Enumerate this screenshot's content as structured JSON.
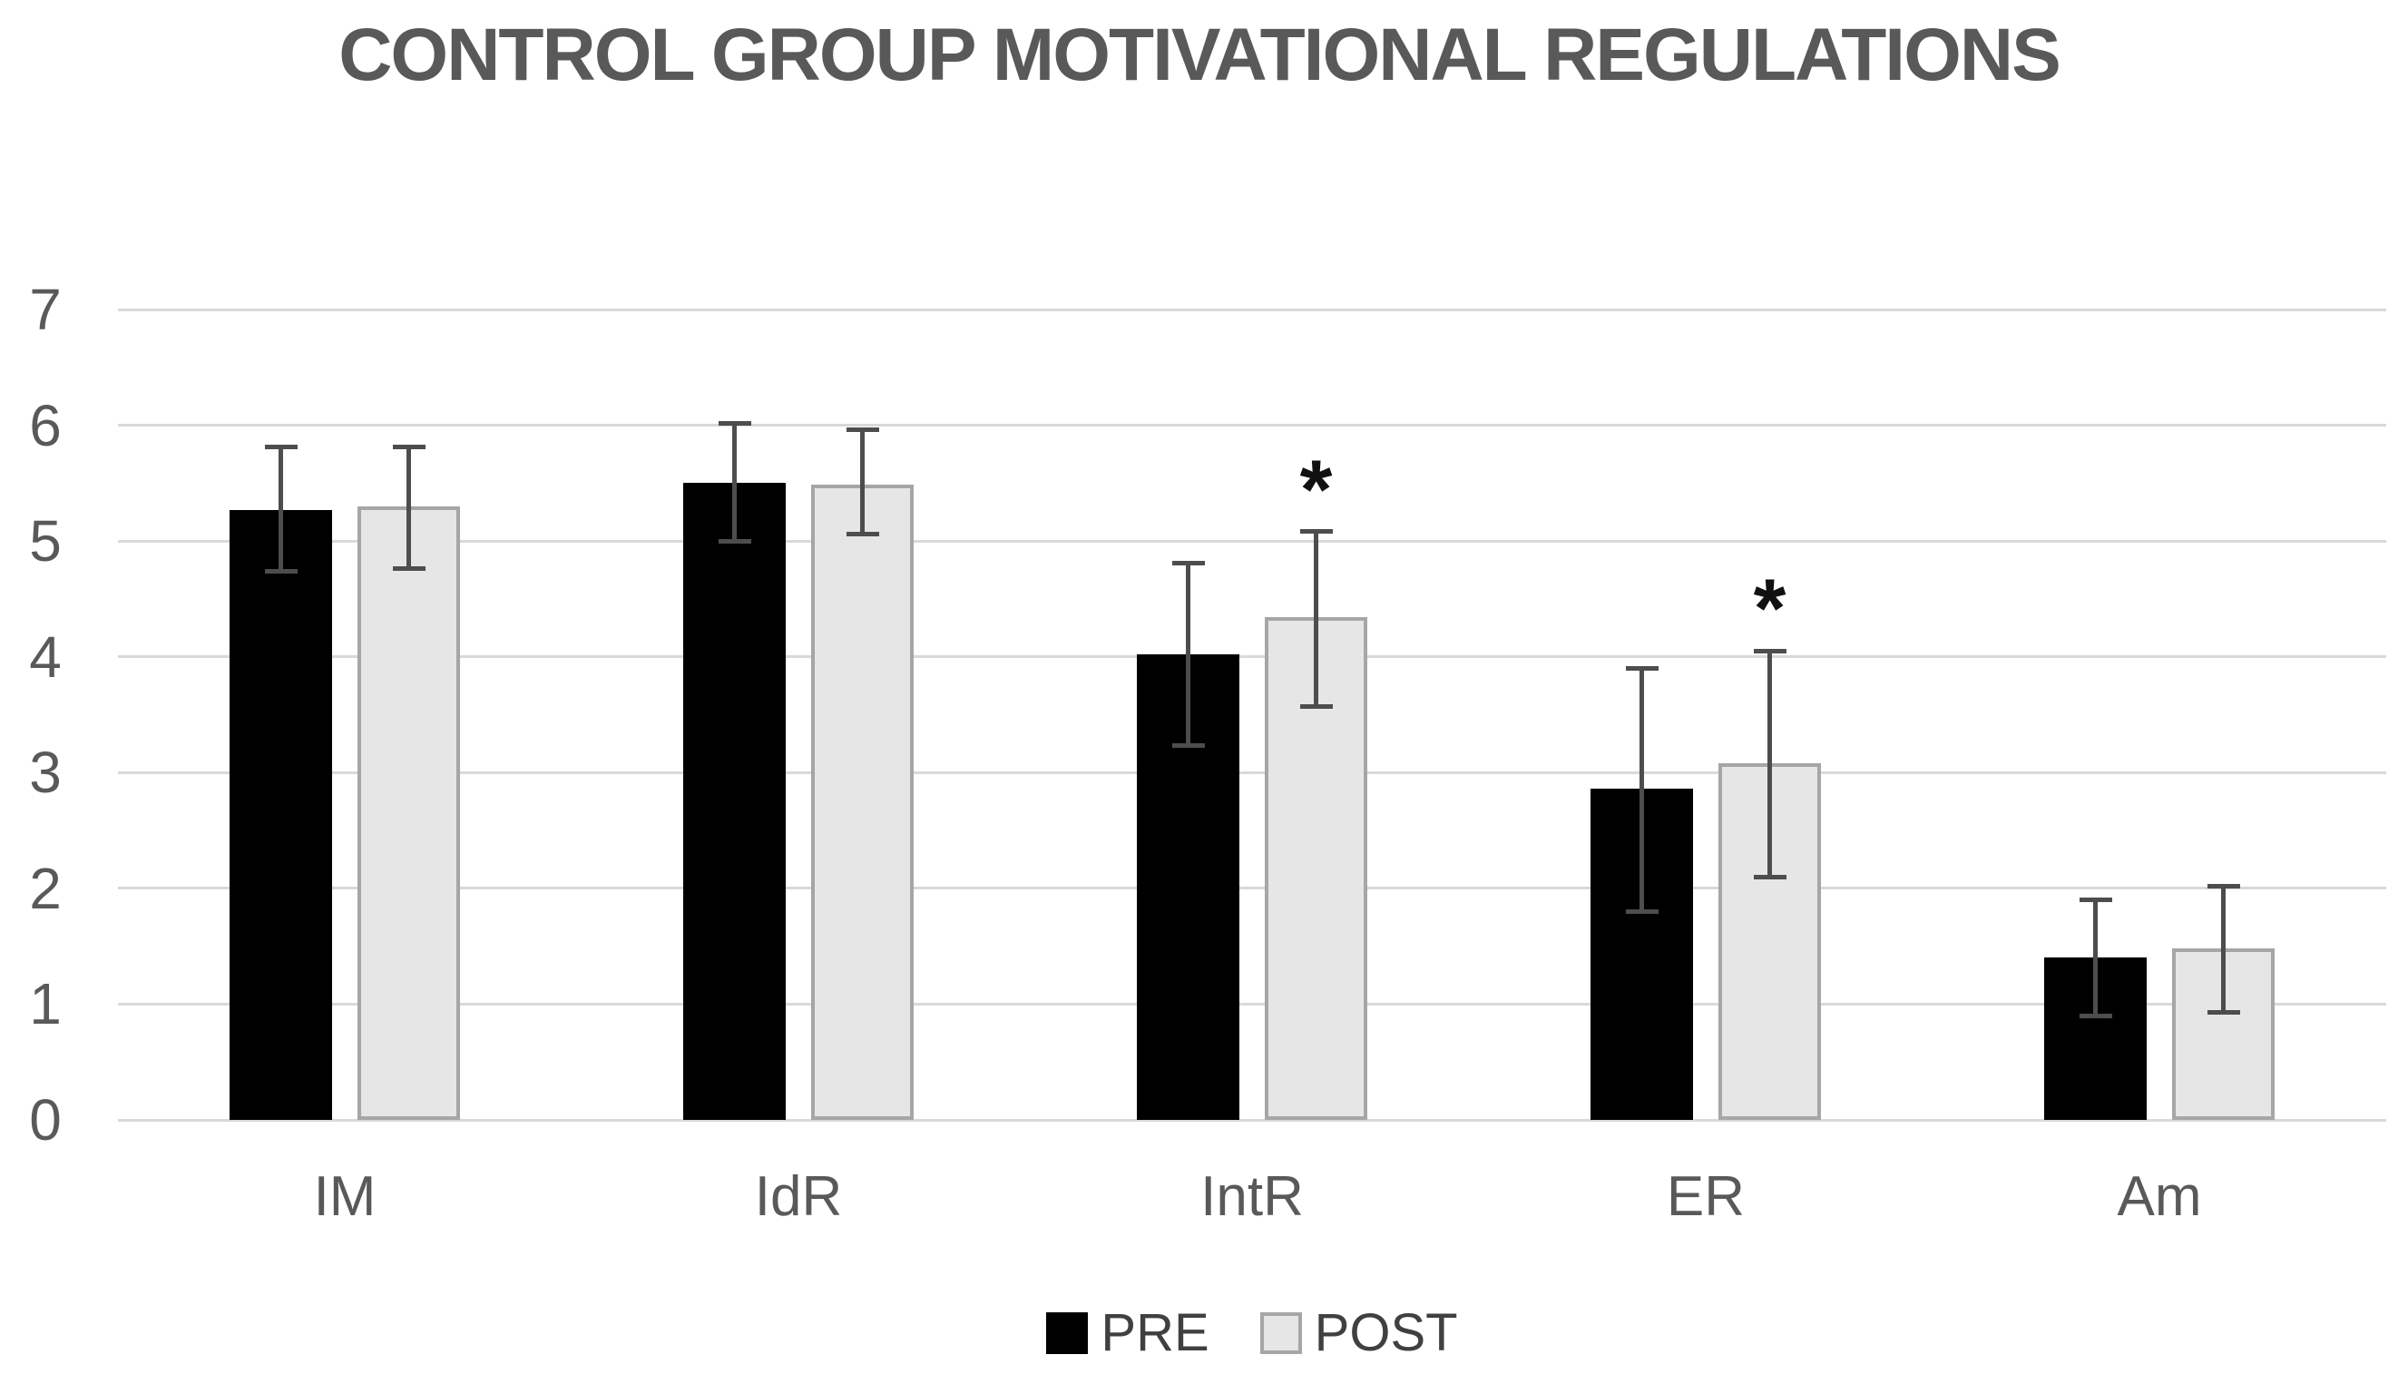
{
  "chart_data": {
    "type": "bar",
    "title": "CONTROL GROUP MOTIVATIONAL REGULATIONS",
    "xlabel": "",
    "ylabel": "",
    "categories": [
      "IM",
      "IdR",
      "IntR",
      "ER",
      "Am"
    ],
    "series": [
      {
        "name": "PRE",
        "color": "#000000",
        "values": [
          5.27,
          5.5,
          4.02,
          2.86,
          1.4
        ],
        "error_low": [
          4.74,
          5.0,
          3.23,
          1.8,
          0.9
        ],
        "error_high": [
          5.81,
          6.02,
          4.81,
          3.9,
          1.9
        ],
        "significance": [
          "",
          "",
          "",
          "",
          ""
        ]
      },
      {
        "name": "POST",
        "color": "#e6e6e6",
        "border_color": "#a6a6a6",
        "values": [
          5.3,
          5.49,
          4.34,
          3.08,
          1.48
        ],
        "error_low": [
          4.76,
          5.06,
          3.57,
          2.1,
          0.93
        ],
        "error_high": [
          5.81,
          5.96,
          5.08,
          4.05,
          2.02
        ],
        "significance": [
          "",
          "",
          "*",
          "*",
          ""
        ]
      }
    ],
    "ylim": [
      0,
      7
    ],
    "yticks": [
      0,
      1,
      2,
      3,
      4,
      5,
      6,
      7
    ],
    "grid": "horizontal",
    "legend_position": "bottom",
    "annotations": {
      "asterisk_meaning_shown": "*"
    },
    "colors": {
      "background": "#ffffff",
      "gridline": "#d9d9d9",
      "title_text": "#595959",
      "axis_text": "#595959",
      "legend_text": "#404040",
      "error_bar": "#4d4d4d",
      "significance_text": "#111111"
    }
  }
}
